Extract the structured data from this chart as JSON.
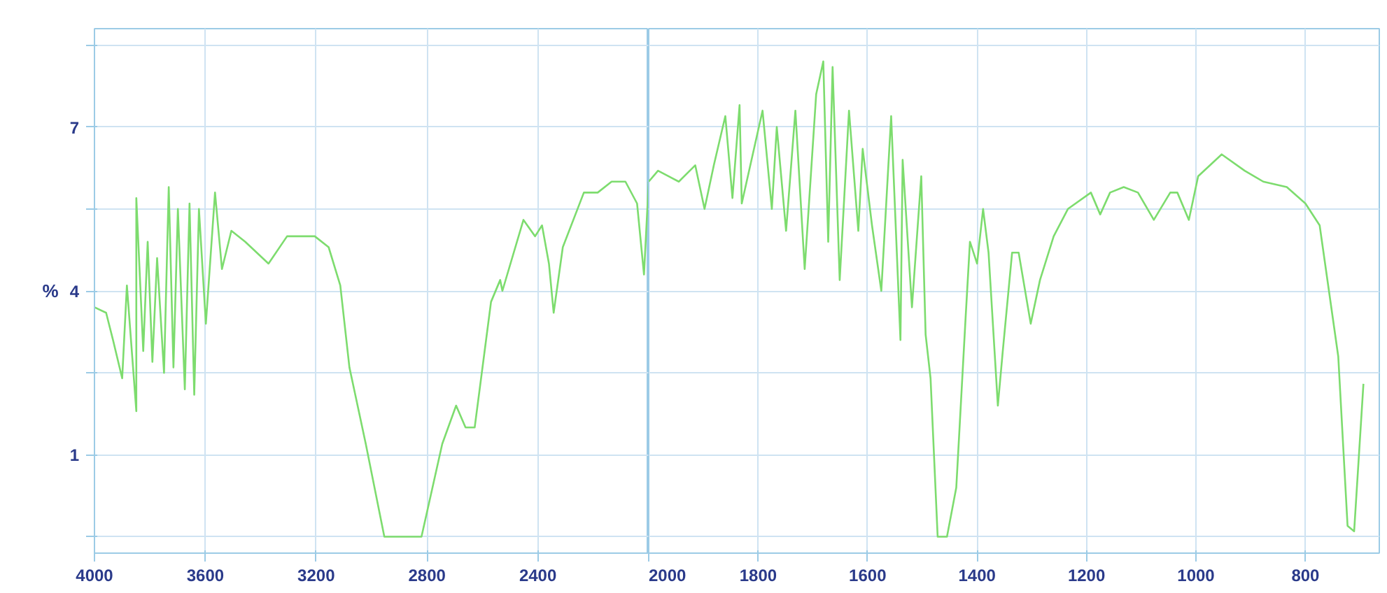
{
  "chart_data": [
    {
      "type": "line",
      "ylabel": "%",
      "xlim": [
        4000,
        2000
      ],
      "ylim": [
        -0.8,
        8.8
      ],
      "grid": true,
      "marker": "none",
      "line_style": "solid",
      "xticks": [
        {
          "value": 4000,
          "label": "4000"
        },
        {
          "value": 3600,
          "label": "3600"
        },
        {
          "value": 3200,
          "label": "3200"
        },
        {
          "value": 2800,
          "label": "2800"
        },
        {
          "value": 2400,
          "label": "2400"
        }
      ],
      "yticks": [
        {
          "value": 8.5,
          "label": null
        },
        7,
        {
          "value": 5.5,
          "label": null
        },
        4,
        {
          "value": 2.5,
          "label": null
        },
        1,
        {
          "value": -0.5,
          "label": null
        }
      ],
      "series": [
        {
          "color": "#7ddc6e",
          "x": [
            4000,
            3958,
            3933,
            3900,
            3883,
            3849,
            3849,
            3824,
            3808,
            3791,
            3774,
            3749,
            3732,
            3715,
            3699,
            3674,
            3657,
            3640,
            3623,
            3598,
            3565,
            3540,
            3506,
            3456,
            3372,
            3305,
            3205,
            3155,
            3113,
            3080,
            3021,
            2954,
            2820,
            2745,
            2695,
            2661,
            2628,
            2569,
            2536,
            2528,
            2452,
            2410,
            2385,
            2360,
            2343,
            2310,
            2234,
            2184,
            2134,
            2084,
            2042,
            2017,
            2000
          ],
          "values": [
            3.7,
            3.6,
            3.1,
            2.4,
            4.1,
            1.8,
            5.7,
            2.9,
            4.9,
            2.7,
            4.6,
            2.5,
            5.9,
            2.6,
            5.5,
            2.2,
            5.6,
            2.1,
            5.5,
            3.4,
            5.8,
            4.4,
            5.1,
            4.9,
            4.5,
            5.0,
            5.0,
            4.8,
            4.1,
            2.6,
            1.2,
            -0.5,
            -0.5,
            1.2,
            1.9,
            1.5,
            1.5,
            3.8,
            4.2,
            4.0,
            5.3,
            5.0,
            5.2,
            4.5,
            3.6,
            4.8,
            5.8,
            5.8,
            6.0,
            6.0,
            5.6,
            4.3,
            6.0
          ]
        }
      ]
    },
    {
      "type": "line",
      "xlim": [
        2000,
        665
      ],
      "ylim": [
        -0.8,
        8.8
      ],
      "grid": true,
      "marker": "none",
      "line_style": "solid",
      "tick_labels": "x",
      "xticks": [
        {
          "value": 2000,
          "label": "2000"
        },
        {
          "value": 1800,
          "label": "1800"
        },
        {
          "value": 1600,
          "label": "1600"
        },
        {
          "value": 1400,
          "label": "1400"
        },
        {
          "value": 1200,
          "label": "1200"
        },
        {
          "value": 1000,
          "label": "1000"
        },
        {
          "value": 800,
          "label": "800"
        }
      ],
      "yticks": [
        {
          "value": 8.5,
          "label": null
        },
        7,
        {
          "value": 5.5,
          "label": null
        },
        4,
        {
          "value": 2.5,
          "label": null
        },
        1,
        {
          "value": -0.5,
          "label": null
        }
      ],
      "series": [
        {
          "color": "#7ddc6e",
          "x": [
            2000,
            1983,
            1945,
            1915,
            1898,
            1881,
            1860,
            1847,
            1834,
            1830,
            1792,
            1775,
            1766,
            1749,
            1732,
            1715,
            1694,
            1681,
            1672,
            1664,
            1651,
            1634,
            1617,
            1609,
            1592,
            1575,
            1557,
            1540,
            1536,
            1519,
            1502,
            1494,
            1485,
            1472,
            1455,
            1438,
            1421,
            1413,
            1400,
            1389,
            1379,
            1362,
            1353,
            1336,
            1324,
            1302,
            1285,
            1260,
            1234,
            1192,
            1175,
            1157,
            1132,
            1106,
            1077,
            1047,
            1034,
            1013,
            996,
            953,
            911,
            877,
            834,
            800,
            774,
            740,
            723,
            711,
            694
          ],
          "values": [
            6.0,
            6.2,
            6.0,
            6.3,
            5.5,
            6.3,
            7.2,
            5.7,
            7.4,
            5.6,
            7.3,
            5.5,
            7.0,
            5.1,
            7.3,
            4.4,
            7.6,
            8.2,
            4.9,
            8.1,
            4.2,
            7.3,
            5.1,
            6.6,
            5.2,
            4.0,
            7.2,
            3.1,
            6.4,
            3.7,
            6.1,
            3.2,
            2.4,
            -0.5,
            -0.5,
            0.4,
            3.5,
            4.9,
            4.5,
            5.5,
            4.7,
            1.9,
            2.9,
            4.7,
            4.7,
            3.4,
            4.2,
            5.0,
            5.5,
            5.8,
            5.4,
            5.8,
            5.9,
            5.8,
            5.3,
            5.8,
            5.8,
            5.3,
            6.1,
            6.5,
            6.2,
            6.0,
            5.9,
            5.6,
            5.2,
            2.8,
            -0.3,
            -0.4,
            2.3
          ]
        }
      ]
    }
  ]
}
